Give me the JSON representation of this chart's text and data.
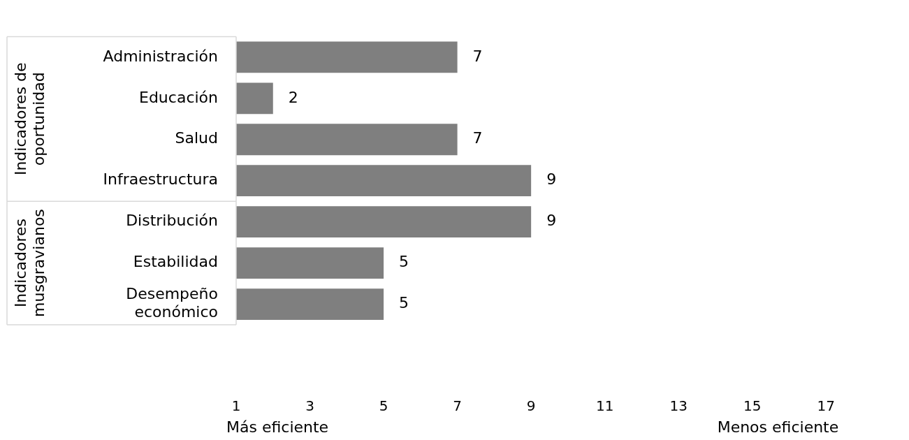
{
  "chart_data": {
    "type": "bar",
    "orientation": "horizontal",
    "categories": [
      "Administración",
      "Educación",
      "Salud",
      "Infraestructura",
      "Distribución",
      "Estabilidad",
      "Desempeño económico"
    ],
    "values": [
      7,
      2,
      7,
      9,
      9,
      5,
      5
    ],
    "color": "#7f7f7f",
    "xlim": [
      1,
      17
    ],
    "xticks": [
      1,
      3,
      5,
      7,
      9,
      11,
      13,
      15,
      17
    ],
    "data_labels": true,
    "grid": false,
    "legend": false,
    "annotations": [
      "Indicadores de oportunidad",
      "Indicadores musgravianos",
      "Más eficiente",
      "Menos eficiente"
    ]
  }
}
